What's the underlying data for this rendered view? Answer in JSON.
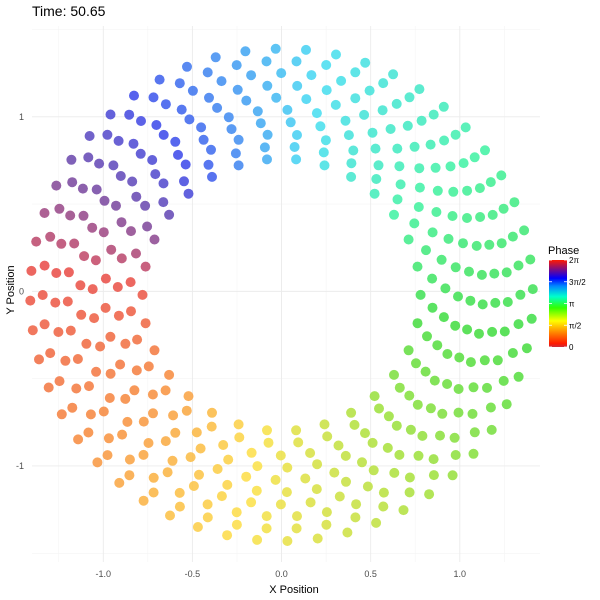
{
  "chart_data": {
    "type": "scatter",
    "title": "Time: 50.65",
    "xlabel": "X Position",
    "ylabel": "Y Position",
    "xlim": [
      -1.4,
      1.45
    ],
    "ylim": [
      -1.55,
      1.52
    ],
    "x_ticks": [
      -1.0,
      -0.5,
      0.0,
      0.5,
      1.0
    ],
    "x_tick_labels": [
      "-1.0",
      "-0.5",
      "0.0",
      "0.5",
      "1.0"
    ],
    "y_ticks": [
      -1,
      0,
      1
    ],
    "y_tick_labels": [
      "-1",
      "0",
      "1"
    ],
    "grid": true,
    "legend": {
      "title": "Phase",
      "placement": "right",
      "labels": [
        "2π",
        "3π/2",
        "π",
        "π/2",
        "0"
      ],
      "label_values": [
        6.2832,
        4.7124,
        3.1416,
        1.5708,
        0
      ],
      "range": [
        0,
        6.2832
      ]
    },
    "color_scale": [
      "#cc2b3a",
      "#ff1a00",
      "#ff8000",
      "#ffff00",
      "#33ff00",
      "#00ffcc",
      "#0088ff",
      "#0000ff",
      "#ff1a00"
    ],
    "color_scale_stops": [
      0,
      0.04,
      0.16,
      0.3,
      0.45,
      0.58,
      0.7,
      0.79,
      1
    ],
    "point_color_stops": [
      {
        "phase": 0.0,
        "color": "#e84545"
      },
      {
        "phase": 0.79,
        "color": "#f78a3c"
      },
      {
        "phase": 1.57,
        "color": "#fde046"
      },
      {
        "phase": 2.36,
        "color": "#a5e03a"
      },
      {
        "phase": 3.14,
        "color": "#3edc3e"
      },
      {
        "phase": 3.93,
        "color": "#3ef2a2"
      },
      {
        "phase": 4.71,
        "color": "#44dcf2"
      },
      {
        "phase": 5.11,
        "color": "#3f93f2"
      },
      {
        "phase": 5.5,
        "color": "#3947ea"
      },
      {
        "phase": 5.89,
        "color": "#6b45a8"
      },
      {
        "phase": 6.2832,
        "color": "#c94560"
      }
    ],
    "rings": [
      {
        "radius": 0.78,
        "count": 30
      },
      {
        "radius": 0.85,
        "count": 32
      },
      {
        "radius": 0.92,
        "count": 35
      },
      {
        "radius": 0.99,
        "count": 37
      },
      {
        "radius": 1.06,
        "count": 40
      },
      {
        "radius": 1.13,
        "count": 42
      },
      {
        "radius": 1.2,
        "count": 45
      },
      {
        "radius": 1.27,
        "count": 47
      },
      {
        "radius": 1.34,
        "count": 50
      },
      {
        "radius": 1.41,
        "count": 52
      }
    ],
    "center": [
      0.0,
      -0.02
    ],
    "phase_offset": -2.98
  }
}
